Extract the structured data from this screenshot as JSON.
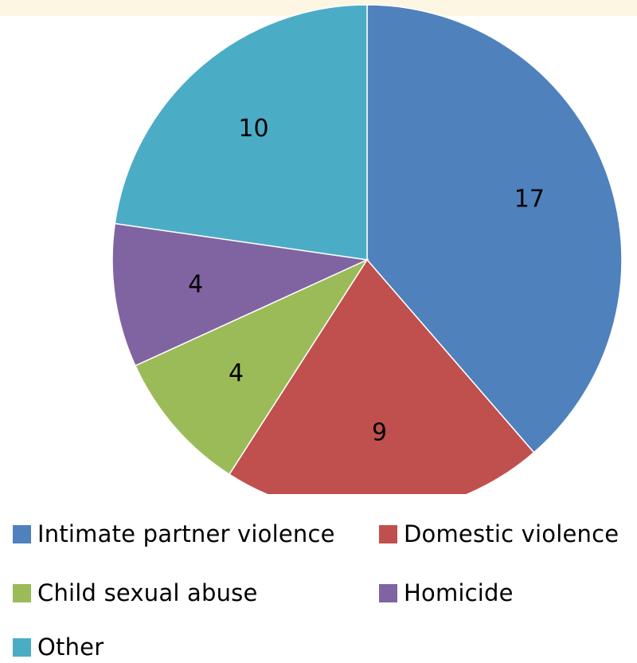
{
  "chart_data": {
    "type": "pie",
    "title": "",
    "legend_position": "bottom",
    "slices": [
      {
        "name": "Intimate partner violence",
        "value": 17,
        "color": "#4f81bd"
      },
      {
        "name": "Domestic violence",
        "value": 9,
        "color": "#c0504d"
      },
      {
        "name": "Child sexual abuse",
        "value": 4,
        "color": "#9bbb59"
      },
      {
        "name": "Homicide",
        "value": 4,
        "color": "#8064a2"
      },
      {
        "name": "Other",
        "value": 10,
        "color": "#4bacc6"
      }
    ]
  }
}
